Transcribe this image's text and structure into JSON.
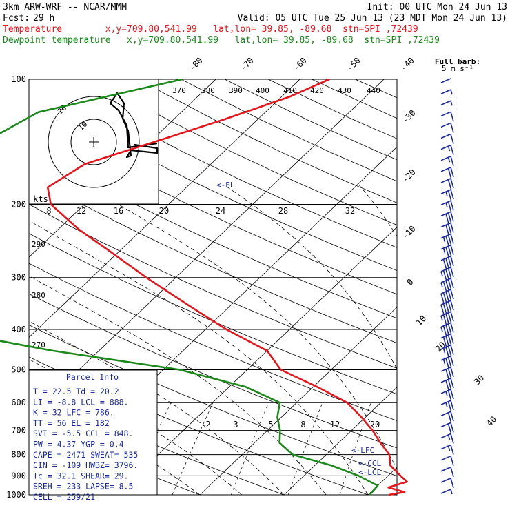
{
  "header": {
    "model": "3km ARW-WRF -- NCAR/MMM",
    "init": "Init: 00 UTC Mon 24 Jun 13",
    "fcst_label": "Fcst:",
    "fcst_value": "29 h",
    "valid": "Valid: 05 UTC Tue 25 Jun 13 (23 MDT Mon 24 Jun 13)",
    "temperature_line": "Temperature        x,y=709.80,541.99   lat,lon= 39.85, -89.68  stn=SPI ,72439",
    "dewpoint_line": "Dewpoint temperature   x,y=709.80,541.99   lat,lon= 39.85, -89.68  stn=SPI ,72439"
  },
  "colors": {
    "temperature": "#e4161b",
    "dewpoint": "#1b8a1b",
    "parcel_text": "#1a2a9c",
    "barb": "#1a2a9c",
    "grid": "#000000"
  },
  "full_barb_label": "Full barb:",
  "full_barb_units": "5 m s⁻¹",
  "parcel_info": {
    "title": "Parcel Info",
    "rows": [
      "T  =    22.5  Td =  20.2",
      "LI =    -8.8  LCL =  888.",
      "K  =      32  LFC =  786.",
      "TT =      56  EL  =   182",
      "SVI =   -5.5  CCL =  848.",
      "PW =    4.37  YGP =   0.4",
      "CAPE =  2471  SWEAT=  535",
      "CIN =   -109  HWBZ= 3796.",
      "Tc =    32.1  SHEAR=  29.",
      "SREH =   233  LAPSE=  8.5",
      "CELL = 259/21"
    ]
  },
  "chart_data": {
    "type": "line",
    "title": "",
    "ylabel": "",
    "xlabel": "",
    "y_axis": "pressure (hPa), log scale",
    "ylim": [
      1000,
      100
    ],
    "pressure_ticks": [
      100,
      200,
      300,
      400,
      500,
      600,
      700,
      800,
      900,
      1000
    ],
    "isotherm_labels": [
      "-80",
      "-70",
      "-60",
      "-50",
      "-40",
      "-30",
      "-20",
      "-10",
      "0",
      "10",
      "20",
      "30",
      "40"
    ],
    "theta_labels": [
      "370",
      "380",
      "390",
      "400",
      "410",
      "420",
      "430",
      "440"
    ],
    "theta_e_labels": [
      "290",
      "280",
      "270"
    ],
    "mixing_ratio_labels": [
      "2",
      "3",
      "5",
      "8",
      "12",
      "20"
    ],
    "hodograph_speed_labels": [
      "kts",
      "8",
      "12",
      "16",
      "20",
      "24",
      "28",
      "32"
    ],
    "hodograph_ring_labels": [
      "10",
      "20"
    ],
    "level_labels": [
      "<-EL",
      "<-LFC",
      "<-CCL",
      "<-LCL"
    ],
    "series": [
      {
        "name": "Temperature",
        "points": [
          [
            100,
            -36.5
          ],
          [
            110,
            -39.0
          ],
          [
            125,
            -44.0
          ],
          [
            140,
            -49.0
          ],
          [
            160,
            -55.0
          ],
          [
            182,
            -56.5
          ],
          [
            200,
            -54.0
          ],
          [
            230,
            -47.5
          ],
          [
            260,
            -41.0
          ],
          [
            300,
            -33.5
          ],
          [
            350,
            -25.0
          ],
          [
            400,
            -17.5
          ],
          [
            450,
            -10.0
          ],
          [
            500,
            -6.0
          ],
          [
            550,
            0.5
          ],
          [
            600,
            6.0
          ],
          [
            650,
            9.5
          ],
          [
            700,
            12.5
          ],
          [
            750,
            15.0
          ],
          [
            800,
            17.5
          ],
          [
            850,
            19.0
          ],
          [
            900,
            21.5
          ],
          [
            930,
            23.0
          ],
          [
            960,
            21.5
          ],
          [
            985,
            24.0
          ],
          [
            1000,
            22.5
          ]
        ]
      },
      {
        "name": "Dewpoint temperature",
        "points": [
          [
            100,
            -54.0
          ],
          [
            120,
            -67.0
          ],
          [
            140,
            -69.5
          ],
          [
            160,
            -70.0
          ],
          [
            182,
            -73.0
          ],
          [
            200,
            -70.0
          ],
          [
            230,
            -68.0
          ],
          [
            260,
            -61.5
          ],
          [
            300,
            -56.5
          ],
          [
            350,
            -53.5
          ],
          [
            380,
            -60.0
          ],
          [
            420,
            -45.0
          ],
          [
            450,
            -35.5
          ],
          [
            500,
            -18.0
          ],
          [
            550,
            -8.0
          ],
          [
            600,
            -2.0
          ],
          [
            650,
            -0.5
          ],
          [
            700,
            1.5
          ],
          [
            750,
            3.0
          ],
          [
            800,
            6.0
          ],
          [
            850,
            12.0
          ],
          [
            900,
            16.5
          ],
          [
            950,
            20.0
          ],
          [
            1000,
            20.2
          ]
        ]
      }
    ],
    "wind_barbs_kts": [
      0,
      5,
      5,
      10,
      10,
      10,
      15,
      15,
      20,
      20,
      25,
      25,
      30,
      30,
      35,
      35,
      40,
      45,
      45,
      50,
      50,
      45,
      45,
      40,
      35,
      35,
      30,
      30,
      25,
      25,
      20,
      20,
      15,
      15,
      10,
      10,
      10,
      5
    ]
  }
}
